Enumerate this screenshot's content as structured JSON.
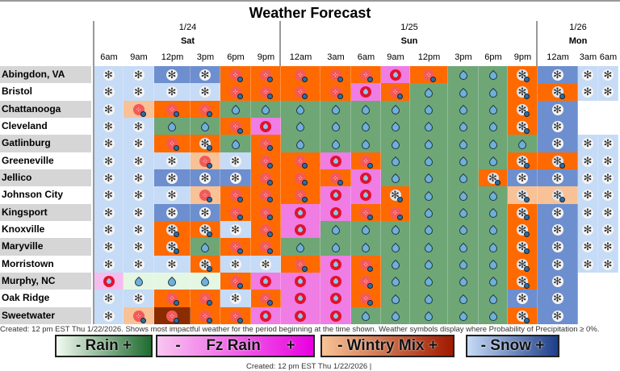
{
  "title": "Weather Forecast",
  "days": [
    {
      "date": "1/24",
      "day": "Sat"
    },
    {
      "date": "1/25",
      "day": "Sun"
    },
    {
      "date": "1/26",
      "day": "Mon"
    }
  ],
  "times": [
    "6am",
    "9am",
    "12pm",
    "3pm",
    "6pm",
    "9pm",
    "12am",
    "3am",
    "6am",
    "9am",
    "12pm",
    "3pm",
    "6pm",
    "9pm",
    "12am",
    "3am",
    "6am"
  ],
  "colors": {
    "ls": "#c6dbf6",
    "hs": "#6d8fcf",
    "lw": "#f8c196",
    "w": "#ff6a00",
    "hw": "#8a2c00",
    "r": "#6fa676",
    "lr": "#e4f7e3",
    "fz": "#ef7de3",
    "lfz": "#f6bcee",
    "x": "#ffffff"
  },
  "icons": {
    "S": "snowflake-icon",
    "M": "wintry-mix-icon",
    "D": "rain-drop-icon",
    "F": "freezing-rain-icon",
    "SM": "snow-mix-icon"
  },
  "rows": [
    {
      "name": "Abingdon, VA",
      "cells": [
        "ls:S",
        "ls:S",
        "hs:S",
        "hs:S",
        "w:M",
        "w:M",
        "w:M",
        "w:M",
        "w:M",
        "fz:F",
        "w:M",
        "r:D",
        "r:D",
        "w:SM",
        "hs:S",
        "ls:S",
        "ls:S"
      ]
    },
    {
      "name": "Bristol",
      "cells": [
        "ls:S",
        "ls:S",
        "ls:S",
        "ls:S",
        "w:M",
        "w:M",
        "w:M",
        "w:M",
        "fz:F",
        "w:M",
        "r:D",
        "r:D",
        "r:D",
        "w:SM",
        "w:SM",
        "ls:S",
        "ls:S"
      ]
    },
    {
      "name": "Chattanooga",
      "cells": [
        "ls:S",
        "lw:M",
        "w:M",
        "w:M",
        "r:D",
        "r:D",
        "r:D",
        "r:D",
        "r:D",
        "r:D",
        "r:D",
        "r:D",
        "r:D",
        "w:SM",
        "hs:S",
        "x:",
        "x:"
      ]
    },
    {
      "name": "Cleveland",
      "cells": [
        "ls:S",
        "ls:S",
        "r:D",
        "r:D",
        "w:M",
        "fz:F",
        "r:D",
        "r:D",
        "r:D",
        "r:D",
        "r:D",
        "r:D",
        "r:D",
        "w:SM",
        "hs:S",
        "x:",
        "x:"
      ]
    },
    {
      "name": "Gatlinburg",
      "cells": [
        "ls:S",
        "ls:S",
        "w:M",
        "w:SM",
        "r:D",
        "w:M",
        "r:D",
        "r:D",
        "r:D",
        "r:D",
        "r:D",
        "r:D",
        "r:D",
        "r:D",
        "hs:S",
        "ls:S",
        "ls:S"
      ]
    },
    {
      "name": "Greeneville",
      "cells": [
        "ls:S",
        "ls:S",
        "ls:S",
        "lw:M",
        "ls:S",
        "w:M",
        "w:M",
        "fz:F",
        "w:M",
        "r:D",
        "r:D",
        "r:D",
        "r:D",
        "w:SM",
        "w:SM",
        "ls:S",
        "ls:S"
      ]
    },
    {
      "name": "Jellico",
      "cells": [
        "ls:S",
        "ls:S",
        "hs:S",
        "hs:S",
        "hs:S",
        "w:M",
        "w:M",
        "w:M",
        "fz:F",
        "r:D",
        "r:D",
        "r:D",
        "w:SM",
        "hs:S",
        "hs:S",
        "ls:S",
        "ls:S"
      ]
    },
    {
      "name": "Johnson City",
      "cells": [
        "ls:S",
        "ls:S",
        "ls:S",
        "lw:M",
        "w:M",
        "w:M",
        "w:M",
        "fz:F",
        "fz:F",
        "w:SM",
        "r:D",
        "r:D",
        "r:D",
        "lw:SM",
        "lw:SM",
        "ls:S",
        "ls:S"
      ]
    },
    {
      "name": "Kingsport",
      "cells": [
        "ls:S",
        "ls:S",
        "hs:S",
        "hs:S",
        "w:M",
        "w:M",
        "fz:F",
        "fz:F",
        "w:M",
        "w:M",
        "r:D",
        "r:D",
        "r:D",
        "w:SM",
        "hs:S",
        "ls:S",
        "ls:S"
      ]
    },
    {
      "name": "Knoxville",
      "cells": [
        "ls:S",
        "ls:S",
        "w:SM",
        "w:SM",
        "ls:S",
        "w:M",
        "fz:F",
        "r:D",
        "r:D",
        "r:D",
        "r:D",
        "r:D",
        "r:D",
        "w:SM",
        "hs:S",
        "ls:S",
        "ls:S"
      ]
    },
    {
      "name": "Maryville",
      "cells": [
        "ls:S",
        "ls:S",
        "w:SM",
        "r:D",
        "w:M",
        "w:M",
        "r:D",
        "r:D",
        "r:D",
        "r:D",
        "r:D",
        "r:D",
        "r:D",
        "w:SM",
        "hs:S",
        "ls:S",
        "ls:S"
      ]
    },
    {
      "name": "Morristown",
      "cells": [
        "ls:S",
        "ls:S",
        "ls:S",
        "w:SM",
        "ls:S",
        "ls:S",
        "w:M",
        "fz:F",
        "w:M",
        "r:D",
        "r:D",
        "r:D",
        "r:D",
        "w:SM",
        "hs:S",
        "ls:S",
        "ls:S"
      ]
    },
    {
      "name": "Murphy, NC",
      "cells": [
        "lfz:F",
        "lr:D",
        "lr:D",
        "lr:D",
        "w:M",
        "fz:F",
        "fz:F",
        "fz:F",
        "w:M",
        "r:D",
        "r:D",
        "r:D",
        "r:D",
        "w:SM",
        "hs:S",
        "x:",
        "x:"
      ]
    },
    {
      "name": "Oak Ridge",
      "cells": [
        "ls:S",
        "ls:S",
        "w:M",
        "w:M",
        "ls:S",
        "w:M",
        "fz:F",
        "fz:F",
        "w:M",
        "r:D",
        "r:D",
        "r:D",
        "r:D",
        "hs:S",
        "hs:S",
        "x:",
        "x:"
      ]
    },
    {
      "name": "Sweetwater",
      "cells": [
        "ls:S",
        "lw:M",
        "hw:M",
        "w:M",
        "w:M",
        "fz:F",
        "fz:F",
        "fz:F",
        "r:D",
        "r:D",
        "r:D",
        "r:D",
        "r:D",
        "w:SM",
        "hs:S",
        "x:",
        "x:"
      ]
    }
  ],
  "note": "Created: 12 pm EST Thu 1/22/2026. Shows most impactful weather for the period beginning at the time shown. Weather symbols display where Probability of Precipitation ≥ 0%.",
  "legend": [
    {
      "label": "- Rain +",
      "from": "#f2fbf0",
      "to": "#1f6b30"
    },
    {
      "label": "-      Fz Rain      +",
      "from": "#f8c6f0",
      "to": "#e800e0"
    },
    {
      "label": "- Wintry Mix +",
      "from": "#f8c396",
      "to": "#a01a00"
    },
    {
      "label": "- Snow +",
      "from": "#c6dbf6",
      "to": "#1c3d8a"
    }
  ],
  "created": "Created: 12 pm EST Thu 1/22/2026  |"
}
